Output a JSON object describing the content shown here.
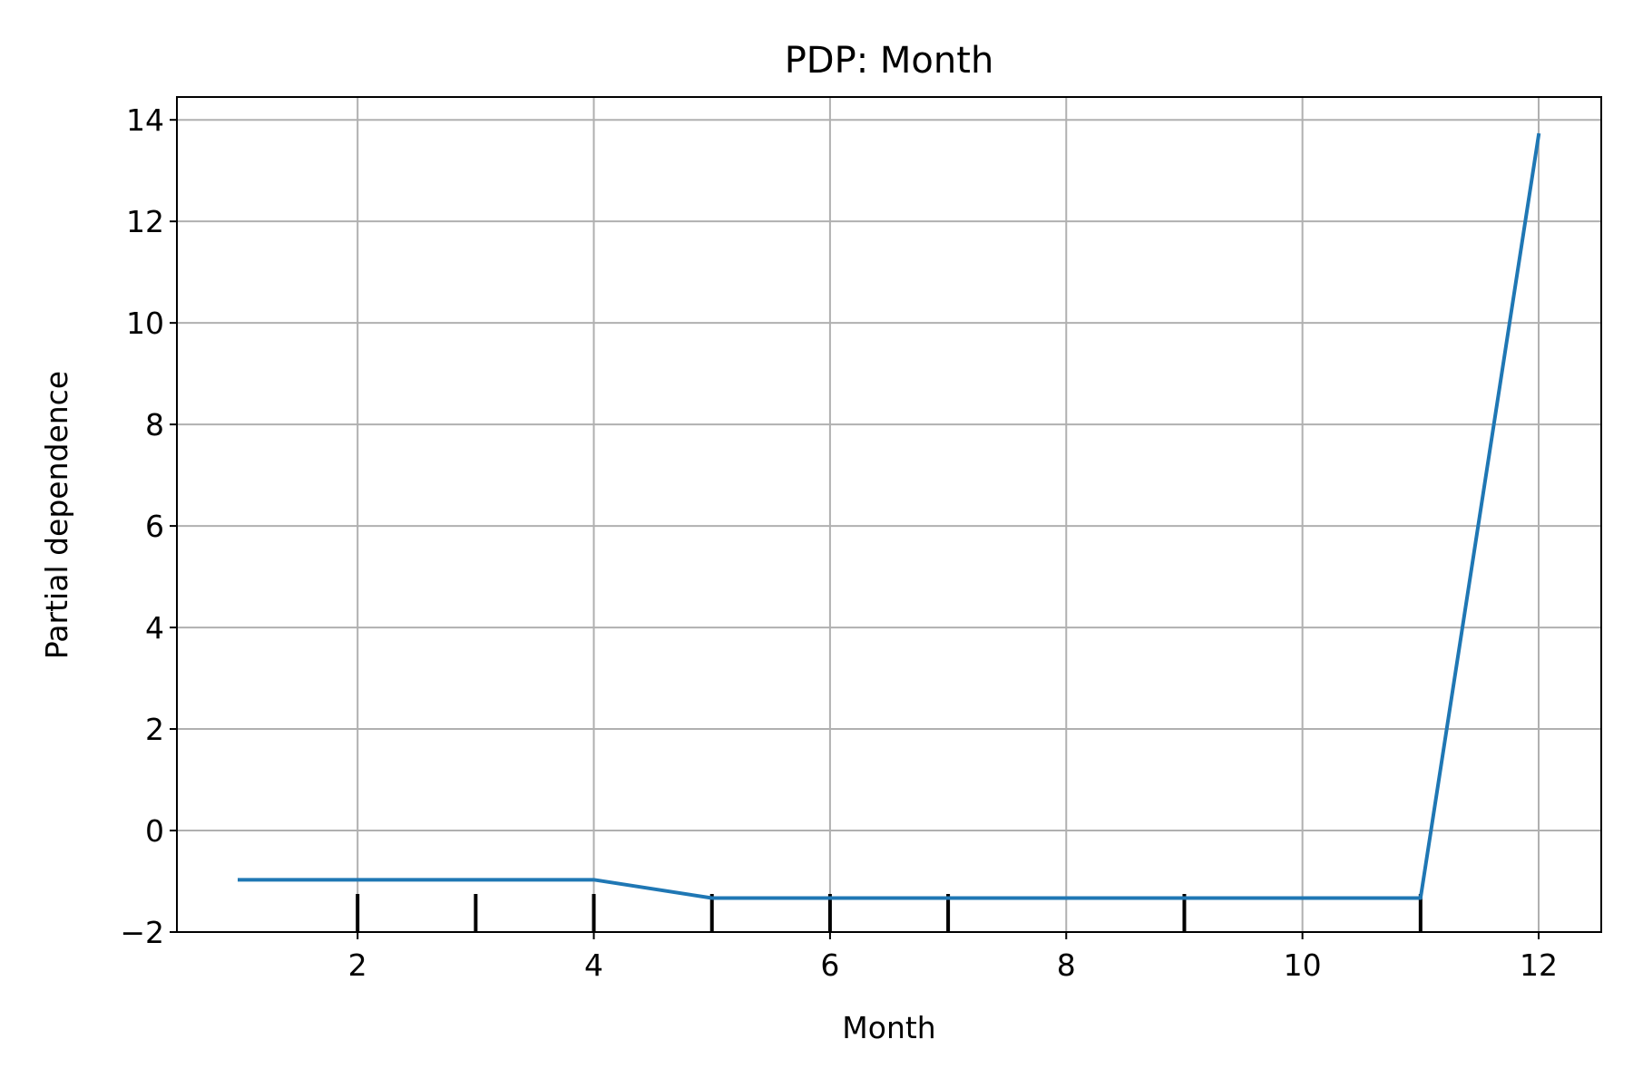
{
  "chart_data": {
    "type": "line",
    "title": "PDP: Month",
    "xlabel": "Month",
    "ylabel": "Partial dependence",
    "xlim": [
      0.47,
      12.53
    ],
    "ylim": [
      -2.0,
      14.45
    ],
    "xticks": [
      2,
      4,
      6,
      8,
      10,
      12
    ],
    "yticks": [
      -2,
      0,
      2,
      4,
      6,
      8,
      10,
      12,
      14
    ],
    "xtick_labels": [
      "2",
      "4",
      "6",
      "8",
      "10",
      "12"
    ],
    "ytick_labels": [
      "−2",
      "0",
      "2",
      "4",
      "6",
      "8",
      "10",
      "12",
      "14"
    ],
    "grid": true,
    "series": [
      {
        "x": [
          1,
          2,
          3,
          4,
          5,
          6,
          7,
          8,
          9,
          10,
          11,
          12
        ],
        "y": [
          -0.97,
          -0.97,
          -0.97,
          -0.97,
          -1.33,
          -1.33,
          -1.33,
          -1.33,
          -1.33,
          -1.33,
          -1.33,
          13.7
        ],
        "color": "#1f77b4"
      }
    ],
    "rug": {
      "x": [
        2,
        3,
        4,
        5,
        6,
        7,
        9,
        11
      ],
      "color": "#000000"
    }
  }
}
